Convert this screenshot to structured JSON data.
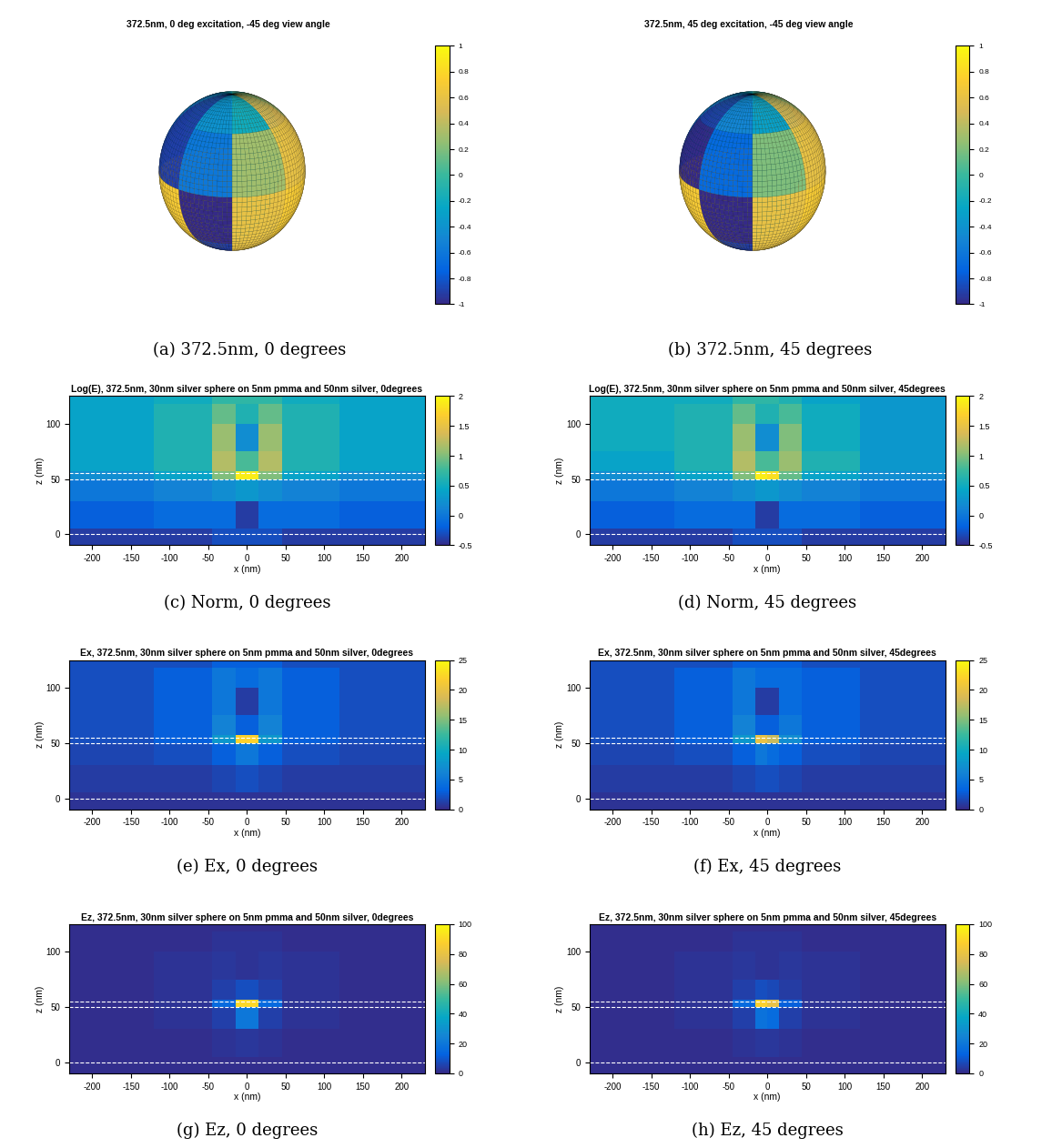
{
  "chart_data": [
    {
      "type": "surface",
      "title": "372.5nm, 0 deg excitation, -45 deg view angle",
      "caption": "(a) 372.5nm, 0 degrees",
      "cells": [
        [
          0.5,
          0.3,
          0.0,
          -0.2,
          -0.5,
          -0.9,
          -0.4,
          -0.2
        ],
        [
          0.6,
          0.5,
          0.2,
          -0.3,
          -0.7,
          -0.9,
          -0.6,
          0.3
        ],
        [
          0.7,
          0.5,
          0.0,
          0.4,
          0.6,
          0.7,
          -1,
          0.6
        ],
        [
          0.6,
          0.4,
          0.1,
          0.3,
          0.5,
          0.6,
          -0.9,
          0.6
        ]
      ],
      "colorbar_range": [
        -1,
        1
      ],
      "colorbar_ticks": [
        -1,
        -0.8,
        -0.6,
        -0.4,
        -0.2,
        0,
        0.2,
        0.4,
        0.6,
        0.8,
        1
      ]
    },
    {
      "type": "surface",
      "title": "372.5nm, 45 deg excitation, -45 deg view angle",
      "caption": "(b) 372.5nm, 45 degrees",
      "cells": [
        [
          0.5,
          0.3,
          0.0,
          -0.2,
          -0.5,
          -0.9,
          -0.5,
          -0.3
        ],
        [
          0.6,
          0.5,
          0.2,
          -0.3,
          -0.7,
          -1,
          -0.7,
          0.2
        ],
        [
          0.7,
          0.5,
          0.0,
          0.4,
          0.6,
          0.7,
          -1,
          0.6
        ],
        [
          0.6,
          0.4,
          0.1,
          0.3,
          0.5,
          0.6,
          -0.9,
          0.6
        ]
      ],
      "colorbar_range": [
        -1,
        1
      ],
      "colorbar_ticks": [
        -1,
        -0.8,
        -0.6,
        -0.4,
        -0.2,
        0,
        0.2,
        0.4,
        0.6,
        0.8,
        1
      ]
    },
    {
      "type": "heatmap",
      "title": "Log(E), 372.5nm, 30nm silver sphere on 5nm pmma and 50nm silver, 0degrees",
      "caption": "(c) Norm, 0 degrees",
      "x_label": "x (nm)",
      "y_label": "z (nm)",
      "xlim": [
        -230,
        230
      ],
      "ylim": [
        -10,
        125
      ],
      "xticks": [
        -200,
        -150,
        -100,
        -50,
        0,
        50,
        100,
        150,
        200
      ],
      "yticks": [
        0,
        50,
        100
      ],
      "interfaces": [
        0,
        50,
        55
      ],
      "line_style": "dashed",
      "x_edges": [
        -230,
        -120,
        -45,
        -15,
        0,
        15,
        45,
        120,
        230
      ],
      "z_edges": [
        -10,
        5,
        30,
        50,
        57,
        75,
        100,
        118,
        125
      ],
      "cells": [
        [
          -0.4,
          -0.4,
          -0.3,
          -0.3,
          -0.3,
          -0.3,
          -0.4,
          -0.4
        ],
        [
          -0.2,
          -0.1,
          -0.1,
          -0.4,
          -0.4,
          -0.1,
          -0.1,
          -0.2
        ],
        [
          0.0,
          0.1,
          0.2,
          0.3,
          0.3,
          0.2,
          0.1,
          0.0
        ],
        [
          0.2,
          0.4,
          1.0,
          1.9,
          1.9,
          1.0,
          0.4,
          0.2
        ],
        [
          0.4,
          0.6,
          1.2,
          0.8,
          0.8,
          1.2,
          0.6,
          0.4
        ],
        [
          0.4,
          0.6,
          1.1,
          0.2,
          0.2,
          1.1,
          0.6,
          0.4
        ],
        [
          0.4,
          0.6,
          0.9,
          0.6,
          0.6,
          0.9,
          0.6,
          0.4
        ],
        [
          0.4,
          0.5,
          0.7,
          0.7,
          0.7,
          0.7,
          0.5,
          0.4
        ]
      ],
      "colorbar_range": [
        -0.5,
        2
      ],
      "colorbar_ticks": [
        -0.5,
        0,
        0.5,
        1,
        1.5,
        2
      ]
    },
    {
      "type": "heatmap",
      "title": "Log(E), 372.5nm, 30nm silver sphere on 5nm pmma and 50nm silver, 45degrees",
      "caption": "(d) Norm, 45 degrees",
      "x_label": "x (nm)",
      "y_label": "z (nm)",
      "xlim": [
        -230,
        230
      ],
      "ylim": [
        -10,
        125
      ],
      "xticks": [
        -200,
        -150,
        -100,
        -50,
        0,
        50,
        100,
        150,
        200
      ],
      "yticks": [
        0,
        50,
        100
      ],
      "interfaces": [
        0,
        50,
        55
      ],
      "line_style": "dashed",
      "x_edges": [
        -230,
        -120,
        -45,
        -15,
        0,
        15,
        45,
        120,
        230
      ],
      "z_edges": [
        -10,
        5,
        30,
        50,
        57,
        75,
        100,
        118,
        125
      ],
      "cells": [
        [
          -0.4,
          -0.4,
          -0.3,
          -0.3,
          -0.3,
          -0.3,
          -0.4,
          -0.4
        ],
        [
          -0.2,
          -0.1,
          -0.1,
          -0.4,
          -0.4,
          -0.1,
          -0.1,
          -0.2
        ],
        [
          0.0,
          0.1,
          0.2,
          0.3,
          0.3,
          0.2,
          0.1,
          0.0
        ],
        [
          0.2,
          0.4,
          1.0,
          1.9,
          1.8,
          0.9,
          0.4,
          0.2
        ],
        [
          0.4,
          0.6,
          1.2,
          0.8,
          0.8,
          1.1,
          0.6,
          0.3
        ],
        [
          0.5,
          0.6,
          1.1,
          0.2,
          0.2,
          1.0,
          0.5,
          0.3
        ],
        [
          0.5,
          0.6,
          0.9,
          0.6,
          0.6,
          0.8,
          0.5,
          0.3
        ],
        [
          0.5,
          0.5,
          0.7,
          0.7,
          0.7,
          0.6,
          0.4,
          0.3
        ]
      ],
      "colorbar_range": [
        -0.5,
        2
      ],
      "colorbar_ticks": [
        -0.5,
        0,
        0.5,
        1,
        1.5,
        2
      ]
    },
    {
      "type": "heatmap",
      "title": "Ex, 372.5nm, 30nm silver sphere on 5nm pmma and 50nm silver, 0degrees",
      "caption": "(e) Ex, 0 degrees",
      "x_label": "x (nm)",
      "y_label": "z (nm)",
      "xlim": [
        -230,
        230
      ],
      "ylim": [
        -10,
        125
      ],
      "xticks": [
        -200,
        -150,
        -100,
        -50,
        0,
        50,
        100,
        150,
        200
      ],
      "yticks": [
        0,
        50,
        100
      ],
      "interfaces": [
        0,
        50,
        55
      ],
      "line_style": "dashed",
      "x_edges": [
        -230,
        -120,
        -45,
        -15,
        0,
        15,
        45,
        120,
        230
      ],
      "z_edges": [
        -10,
        5,
        30,
        50,
        57,
        75,
        100,
        118,
        125
      ],
      "cells": [
        [
          0.5,
          0.5,
          0.5,
          0.5,
          0.5,
          0.5,
          0.5,
          0.5
        ],
        [
          1,
          1,
          1.5,
          2,
          2,
          1.5,
          1,
          1
        ],
        [
          1.5,
          2,
          3,
          5,
          5,
          3,
          2,
          1.5
        ],
        [
          2,
          3,
          8,
          22,
          22,
          8,
          3,
          2
        ],
        [
          2,
          3,
          6,
          3,
          3,
          6,
          3,
          2
        ],
        [
          2,
          3,
          5,
          1,
          1,
          5,
          3,
          2
        ],
        [
          2,
          3,
          5,
          4,
          4,
          5,
          3,
          2
        ],
        [
          2,
          2,
          3,
          3,
          3,
          3,
          2,
          2
        ]
      ],
      "colorbar_range": [
        0,
        25
      ],
      "colorbar_ticks": [
        0,
        5,
        10,
        15,
        20,
        25
      ]
    },
    {
      "type": "heatmap",
      "title": "Ex, 372.5nm, 30nm silver sphere on 5nm pmma and 50nm silver, 45degrees",
      "caption": "(f) Ex, 45 degrees",
      "x_label": "x (nm)",
      "y_label": "z (nm)",
      "xlim": [
        -230,
        230
      ],
      "ylim": [
        -10,
        125
      ],
      "xticks": [
        -200,
        -150,
        -100,
        -50,
        0,
        50,
        100,
        150,
        200
      ],
      "yticks": [
        0,
        50,
        100
      ],
      "interfaces": [
        0,
        50,
        55
      ],
      "line_style": "dashed",
      "x_edges": [
        -230,
        -120,
        -45,
        -15,
        0,
        15,
        45,
        120,
        230
      ],
      "z_edges": [
        -10,
        5,
        30,
        50,
        57,
        75,
        100,
        118,
        125
      ],
      "cells": [
        [
          0.5,
          0.5,
          0.5,
          0.5,
          0.5,
          0.5,
          0.5,
          0.5
        ],
        [
          1,
          1,
          1.5,
          2,
          2,
          1.5,
          1,
          1
        ],
        [
          1.5,
          2,
          3,
          5,
          4,
          3,
          2,
          1.5
        ],
        [
          2,
          3,
          8,
          20,
          18,
          7,
          3,
          2
        ],
        [
          2,
          3,
          6,
          3,
          3,
          5,
          3,
          2
        ],
        [
          2,
          3,
          5,
          1,
          1,
          4,
          3,
          2
        ],
        [
          2,
          3,
          5,
          4,
          4,
          4,
          3,
          2
        ],
        [
          2,
          2,
          3,
          3,
          3,
          3,
          2,
          2
        ]
      ],
      "colorbar_range": [
        0,
        25
      ],
      "colorbar_ticks": [
        0,
        5,
        10,
        15,
        20,
        25
      ]
    },
    {
      "type": "heatmap",
      "title": "Ez, 372.5nm, 30nm silver sphere on 5nm pmma and 50nm silver, 0degrees",
      "caption": "(g) Ez, 0 degrees",
      "x_label": "x (nm)",
      "y_label": "z (nm)",
      "xlim": [
        -230,
        230
      ],
      "ylim": [
        -10,
        125
      ],
      "xticks": [
        -200,
        -150,
        -100,
        -50,
        0,
        50,
        100,
        150,
        200
      ],
      "yticks": [
        0,
        50,
        100
      ],
      "interfaces": [
        0,
        50,
        55
      ],
      "line_style": "dashed",
      "x_edges": [
        -230,
        -120,
        -45,
        -15,
        0,
        15,
        45,
        120,
        230
      ],
      "z_edges": [
        -10,
        5,
        30,
        50,
        57,
        75,
        100,
        118,
        125
      ],
      "cells": [
        [
          1,
          1,
          1,
          1,
          1,
          1,
          1,
          1
        ],
        [
          1,
          1,
          2,
          3,
          3,
          2,
          1,
          1
        ],
        [
          1,
          2,
          5,
          20,
          20,
          5,
          2,
          1
        ],
        [
          1,
          2,
          15,
          90,
          90,
          15,
          2,
          1
        ],
        [
          1,
          2,
          5,
          8,
          8,
          5,
          2,
          1
        ],
        [
          1,
          2,
          3,
          2,
          2,
          3,
          2,
          1
        ],
        [
          1,
          1,
          2,
          2,
          2,
          2,
          1,
          1
        ],
        [
          1,
          1,
          1,
          1,
          1,
          1,
          1,
          1
        ]
      ],
      "colorbar_range": [
        0,
        100
      ],
      "colorbar_ticks": [
        0,
        20,
        40,
        60,
        80,
        100
      ]
    },
    {
      "type": "heatmap",
      "title": "Ez, 372.5nm, 30nm silver sphere on 5nm pmma and 50nm silver, 45degrees",
      "caption": "(h) Ez, 45 degrees",
      "x_label": "x (nm)",
      "y_label": "z (nm)",
      "xlim": [
        -230,
        230
      ],
      "ylim": [
        -10,
        125
      ],
      "xticks": [
        -200,
        -150,
        -100,
        -50,
        0,
        50,
        100,
        150,
        200
      ],
      "yticks": [
        0,
        50,
        100
      ],
      "interfaces": [
        0,
        50,
        55
      ],
      "line_style": "dashed",
      "x_edges": [
        -230,
        -120,
        -45,
        -15,
        0,
        15,
        45,
        120,
        230
      ],
      "z_edges": [
        -10,
        5,
        30,
        50,
        57,
        75,
        100,
        118,
        125
      ],
      "cells": [
        [
          1,
          1,
          1,
          1,
          1,
          1,
          1,
          1
        ],
        [
          1,
          1,
          2,
          3,
          3,
          2,
          1,
          1
        ],
        [
          1,
          2,
          5,
          18,
          16,
          5,
          2,
          1
        ],
        [
          1,
          2,
          15,
          88,
          80,
          12,
          2,
          1
        ],
        [
          1,
          2,
          5,
          8,
          7,
          4,
          2,
          1
        ],
        [
          1,
          2,
          3,
          2,
          2,
          3,
          2,
          1
        ],
        [
          1,
          1,
          2,
          2,
          2,
          2,
          1,
          1
        ],
        [
          1,
          1,
          1,
          1,
          1,
          1,
          1,
          1
        ]
      ],
      "colorbar_range": [
        0,
        100
      ],
      "colorbar_ticks": [
        0,
        20,
        40,
        60,
        80,
        100
      ]
    }
  ]
}
